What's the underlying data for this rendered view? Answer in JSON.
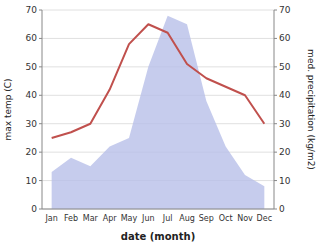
{
  "chart_data": {
    "type": "line",
    "categories": [
      "Jan",
      "Feb",
      "Mar",
      "Apr",
      "May",
      "Jun",
      "Jul",
      "Aug",
      "Sep",
      "Oct",
      "Nov",
      "Dec"
    ],
    "xlabel": "date (month)",
    "ylabel": "max temp (C)",
    "y2label": "med. precipitation (kg/m2)",
    "series": [
      {
        "type": "area",
        "axis": "y2",
        "color": "#b8bfe8",
        "values": [
          13,
          18,
          15,
          22,
          25,
          50,
          68,
          65,
          38,
          22,
          12,
          8
        ]
      },
      {
        "type": "line",
        "color": "#c0504d",
        "values": [
          25,
          27,
          30,
          42,
          58,
          65,
          62,
          51,
          46,
          43,
          40,
          30
        ]
      }
    ],
    "ylim": [
      0,
      70
    ],
    "yticks": [
      0,
      10,
      20,
      30,
      40,
      50,
      60,
      70
    ],
    "y2lim": [
      0,
      70
    ],
    "y2ticks": [
      0,
      10,
      20,
      30,
      40,
      50,
      60,
      70
    ],
    "grid": true
  }
}
